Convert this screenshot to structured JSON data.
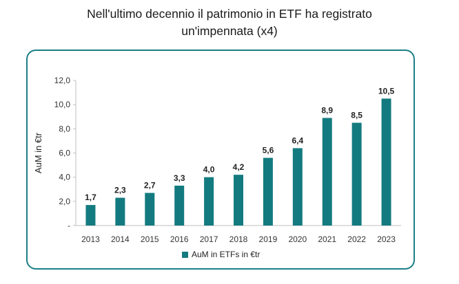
{
  "header": {
    "title_line1": "Nell'ultimo decennio il patrimonio in ETF ha registrato",
    "title_line2": "un'impennata (x4)"
  },
  "chart_data": {
    "type": "bar",
    "categories": [
      "2013",
      "2014",
      "2015",
      "2016",
      "2017",
      "2018",
      "2019",
      "2020",
      "2021",
      "2022",
      "2023"
    ],
    "series": [
      {
        "name": "AuM in ETFs in €tr",
        "values": [
          1.7,
          2.3,
          2.7,
          3.3,
          4.0,
          4.2,
          5.6,
          6.4,
          8.9,
          8.5,
          10.5
        ],
        "labels": [
          "1,7",
          "2,3",
          "2,7",
          "3,3",
          "4,0",
          "4,2",
          "5,6",
          "6,4",
          "8,9",
          "8,5",
          "10,5"
        ],
        "color": "#137b80"
      }
    ],
    "ylabel": "AuM in €tr",
    "xlabel": "",
    "ylim": [
      0,
      12
    ],
    "yticks": [
      0,
      2,
      4,
      6,
      8,
      10,
      12
    ],
    "ytick_labels": [
      "-",
      "2,0",
      "4,0",
      "6,0",
      "8,0",
      "10,0",
      "12,0"
    ],
    "legend_position": "bottom-center",
    "grid": false,
    "frame_color": "#1a7f85"
  }
}
